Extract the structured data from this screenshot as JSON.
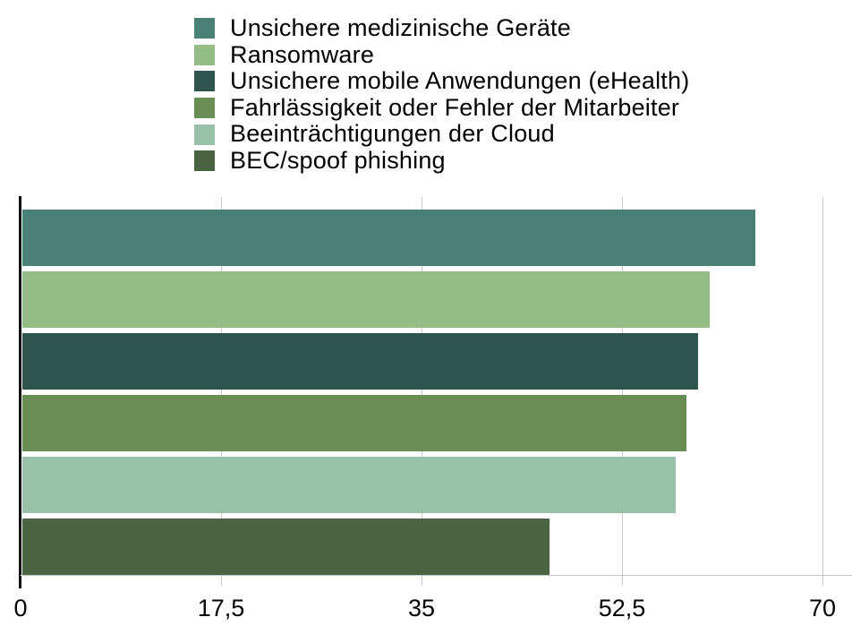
{
  "chart_data": {
    "type": "bar",
    "orientation": "horizontal",
    "title": "",
    "xlabel": "",
    "ylabel": "",
    "categories": [
      "Unsichere medizinische Geräte",
      "Ransomware",
      "Unsichere mobile Anwendungen (eHealth)",
      "Fahrlässigkeit oder Fehler der Mitarbeiter",
      "Beeinträchtigungen der Cloud",
      "BEC/spoof phishing"
    ],
    "values": [
      64,
      60,
      59,
      58,
      57,
      46
    ],
    "bar_colors": [
      "#4A8177",
      "#94BD86",
      "#2E544D",
      "#688E53",
      "#99C0A9",
      "#4A6340"
    ],
    "xlim": [
      0,
      70
    ],
    "x_tick_values": [
      0,
      17.5,
      35,
      52.5,
      70
    ],
    "x_tick_labels": [
      "0",
      "17,5",
      "35",
      "52,5",
      "70"
    ],
    "legend_position": "top-center",
    "grid": "vertical-only"
  },
  "style": {
    "background_color": "#FFFFFF",
    "grid_color": "#C9C9C9",
    "y_axis_color": "#111111",
    "text_color": "#000000"
  }
}
